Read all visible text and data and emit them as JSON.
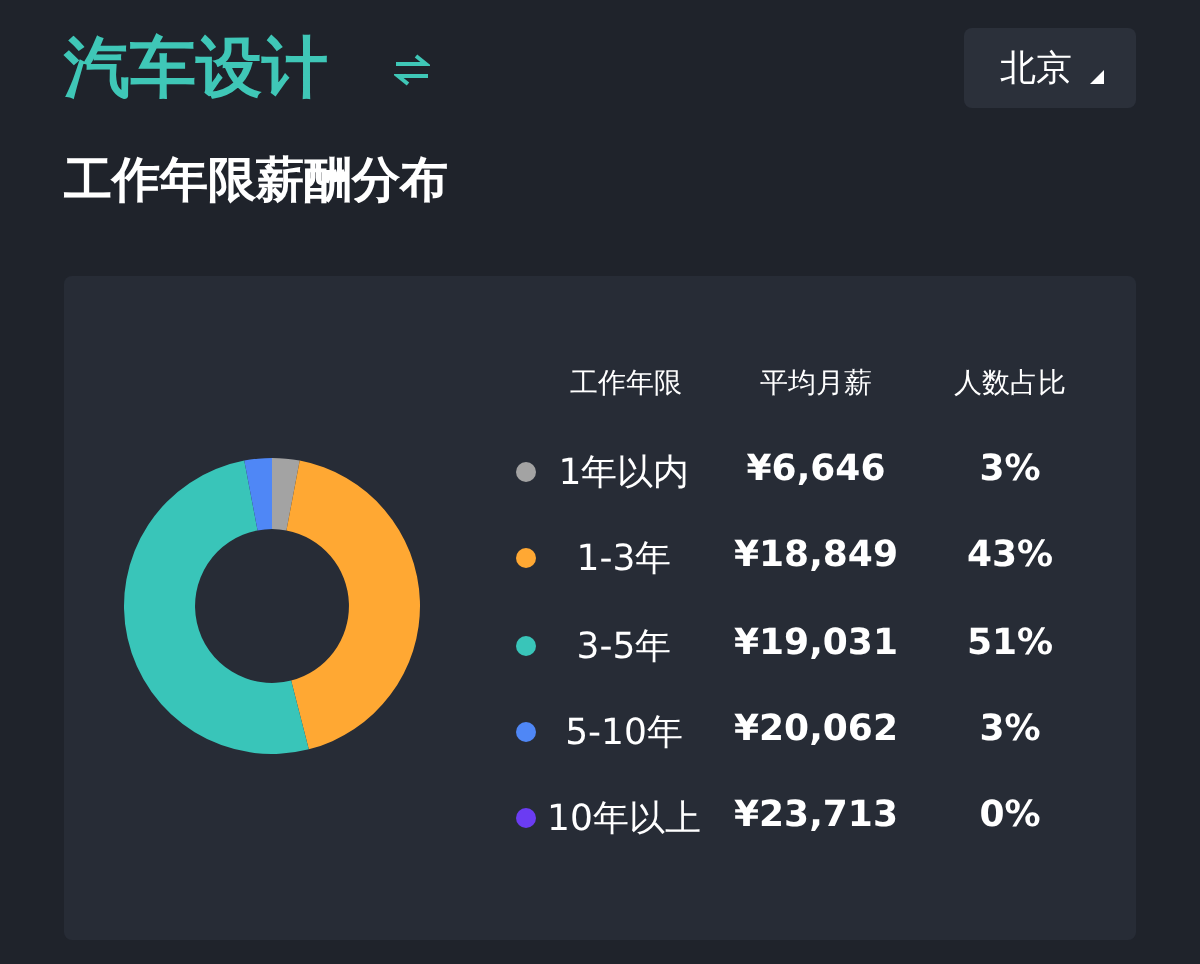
{
  "chart_data": {
    "type": "donut",
    "title": "汽车设计",
    "subtitle": "工作年限薪酬分布",
    "categories": [
      "1年以内",
      "1-3年",
      "3-5年",
      "5-10年",
      "10年以上"
    ],
    "values": [
      3,
      43,
      51,
      3,
      0
    ],
    "value_labels": [
      "3%",
      "43%",
      "51%",
      "3%",
      "0%"
    ],
    "colors": [
      "#a3a3a3",
      "#ffa833",
      "#39c5b9",
      "#4f87f6",
      "#6b3cf2"
    ],
    "legend": "right",
    "annotations": [
      "北京",
      "工作年限",
      "平均月薪",
      "人数占比",
      "¥6,646",
      "¥18,849",
      "¥19,031",
      "¥20,062",
      "¥23,713"
    ]
  }
}
